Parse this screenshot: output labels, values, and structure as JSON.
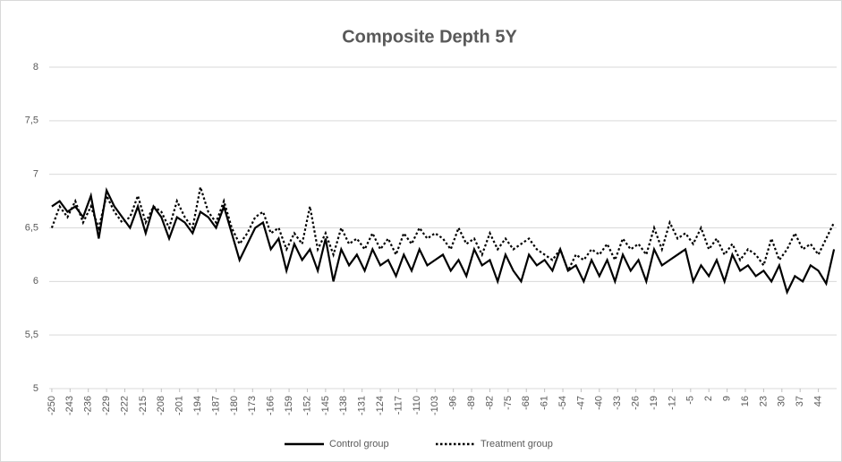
{
  "chart_data": {
    "type": "line",
    "title": "Composite Depth 5Y",
    "x": [
      -250,
      -247,
      -244,
      -241,
      -238,
      -235,
      -232,
      -229,
      -226,
      -223,
      -220,
      -217,
      -214,
      -211,
      -208,
      -205,
      -202,
      -199,
      -196,
      -193,
      -190,
      -187,
      -184,
      -181,
      -178,
      -175,
      -172,
      -169,
      -166,
      -163,
      -160,
      -157,
      -154,
      -151,
      -148,
      -145,
      -142,
      -139,
      -136,
      -133,
      -130,
      -127,
      -124,
      -121,
      -118,
      -115,
      -112,
      -109,
      -106,
      -103,
      -100,
      -97,
      -94,
      -91,
      -88,
      -85,
      -82,
      -79,
      -76,
      -73,
      -70,
      -67,
      -64,
      -61,
      -58,
      -55,
      -52,
      -49,
      -46,
      -43,
      -40,
      -37,
      -34,
      -31,
      -28,
      -25,
      -22,
      -19,
      -16,
      -13,
      -10,
      -7,
      -4,
      -1,
      2,
      5,
      8,
      11,
      14,
      17,
      20,
      23,
      26,
      29,
      32,
      35,
      38,
      41,
      44,
      47,
      50
    ],
    "series": [
      {
        "name": "Control group",
        "color": "#000000",
        "line_style": "solid",
        "values": [
          6.7,
          6.75,
          6.65,
          6.7,
          6.6,
          6.8,
          6.4,
          6.85,
          6.7,
          6.6,
          6.5,
          6.7,
          6.45,
          6.7,
          6.6,
          6.4,
          6.6,
          6.55,
          6.45,
          6.65,
          6.6,
          6.5,
          6.7,
          6.45,
          6.2,
          6.35,
          6.5,
          6.55,
          6.3,
          6.4,
          6.1,
          6.35,
          6.2,
          6.3,
          6.1,
          6.4,
          6.0,
          6.3,
          6.15,
          6.25,
          6.1,
          6.3,
          6.15,
          6.2,
          6.05,
          6.25,
          6.1,
          6.3,
          6.15,
          6.2,
          6.25,
          6.1,
          6.2,
          6.05,
          6.3,
          6.15,
          6.2,
          6.0,
          6.25,
          6.1,
          6.0,
          6.25,
          6.15,
          6.2,
          6.1,
          6.3,
          6.1,
          6.15,
          6.0,
          6.2,
          6.05,
          6.2,
          6.0,
          6.25,
          6.1,
          6.2,
          6.0,
          6.3,
          6.15,
          6.2,
          6.25,
          6.3,
          6.0,
          6.15,
          6.05,
          6.2,
          6.0,
          6.25,
          6.1,
          6.15,
          6.05,
          6.1,
          6.0,
          6.15,
          5.9,
          6.05,
          6.0,
          6.15,
          6.1,
          5.98,
          6.3
        ]
      },
      {
        "name": "Treatment group",
        "color": "#000000",
        "line_style": "dotted",
        "values": [
          6.5,
          6.7,
          6.6,
          6.75,
          6.55,
          6.7,
          6.5,
          6.8,
          6.65,
          6.55,
          6.6,
          6.8,
          6.55,
          6.7,
          6.65,
          6.5,
          6.75,
          6.6,
          6.5,
          6.88,
          6.65,
          6.55,
          6.75,
          6.5,
          6.35,
          6.45,
          6.6,
          6.65,
          6.45,
          6.5,
          6.3,
          6.45,
          6.35,
          6.7,
          6.3,
          6.45,
          6.25,
          6.5,
          6.35,
          6.4,
          6.3,
          6.45,
          6.3,
          6.4,
          6.25,
          6.45,
          6.35,
          6.5,
          6.4,
          6.45,
          6.4,
          6.3,
          6.5,
          6.35,
          6.4,
          6.25,
          6.45,
          6.3,
          6.4,
          6.3,
          6.35,
          6.4,
          6.3,
          6.25,
          6.2,
          6.3,
          6.1,
          6.25,
          6.2,
          6.3,
          6.25,
          6.35,
          6.2,
          6.4,
          6.3,
          6.35,
          6.25,
          6.5,
          6.3,
          6.55,
          6.4,
          6.45,
          6.35,
          6.5,
          6.3,
          6.4,
          6.25,
          6.35,
          6.2,
          6.3,
          6.25,
          6.15,
          6.4,
          6.2,
          6.3,
          6.45,
          6.3,
          6.35,
          6.25,
          6.4,
          6.55
        ]
      }
    ],
    "xlim": [
      -251,
      51
    ],
    "xticks": [
      -250,
      -243,
      -236,
      -229,
      -222,
      -215,
      -208,
      -201,
      -194,
      -187,
      -180,
      -173,
      -166,
      -159,
      -152,
      -145,
      -138,
      -131,
      -124,
      -117,
      -110,
      -103,
      -96,
      -89,
      -82,
      -75,
      -68,
      -61,
      -54,
      -47,
      -40,
      -33,
      -26,
      -19,
      -12,
      -5,
      2,
      9,
      16,
      23,
      30,
      37,
      44
    ],
    "ylim": [
      5,
      8
    ],
    "yticks": [
      5,
      {
        "value": 5.5,
        "label": "5,5"
      },
      6,
      {
        "value": 6.5,
        "label": "6,5"
      },
      7,
      {
        "value": 7.5,
        "label": "7,5"
      },
      8
    ],
    "grid": true,
    "legend": "bottom"
  }
}
